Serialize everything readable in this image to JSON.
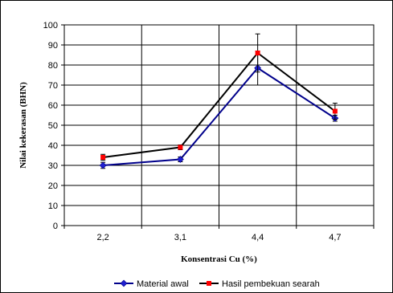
{
  "chart_data": {
    "type": "line",
    "categories": [
      "2,2",
      "3,1",
      "4,4",
      "4,7"
    ],
    "xlabel": "Konsentrasi Cu (%)",
    "ylabel": "Nilai kekerasan (BHN)",
    "ylim": [
      0,
      100
    ],
    "ytick_step": 10,
    "yticks": [
      "0",
      "10",
      "20",
      "30",
      "40",
      "50",
      "60",
      "70",
      "80",
      "90",
      "100"
    ],
    "grid": true,
    "legend_position": "bottom",
    "series": [
      {
        "name": "Material awal",
        "values": [
          30,
          33,
          78.5,
          53.5
        ],
        "errors": [
          1.5,
          1.2,
          8.5,
          1.5
        ],
        "line_color": "#00008b",
        "marker": "diamond",
        "marker_color": "#1f1fd0"
      },
      {
        "name": "Hasil pembekuan searah",
        "values": [
          34,
          39,
          86,
          57
        ],
        "errors": [
          1.5,
          1.2,
          9.5,
          4
        ],
        "line_color": "#000000",
        "marker": "square",
        "marker_color": "#ff0000"
      }
    ]
  }
}
